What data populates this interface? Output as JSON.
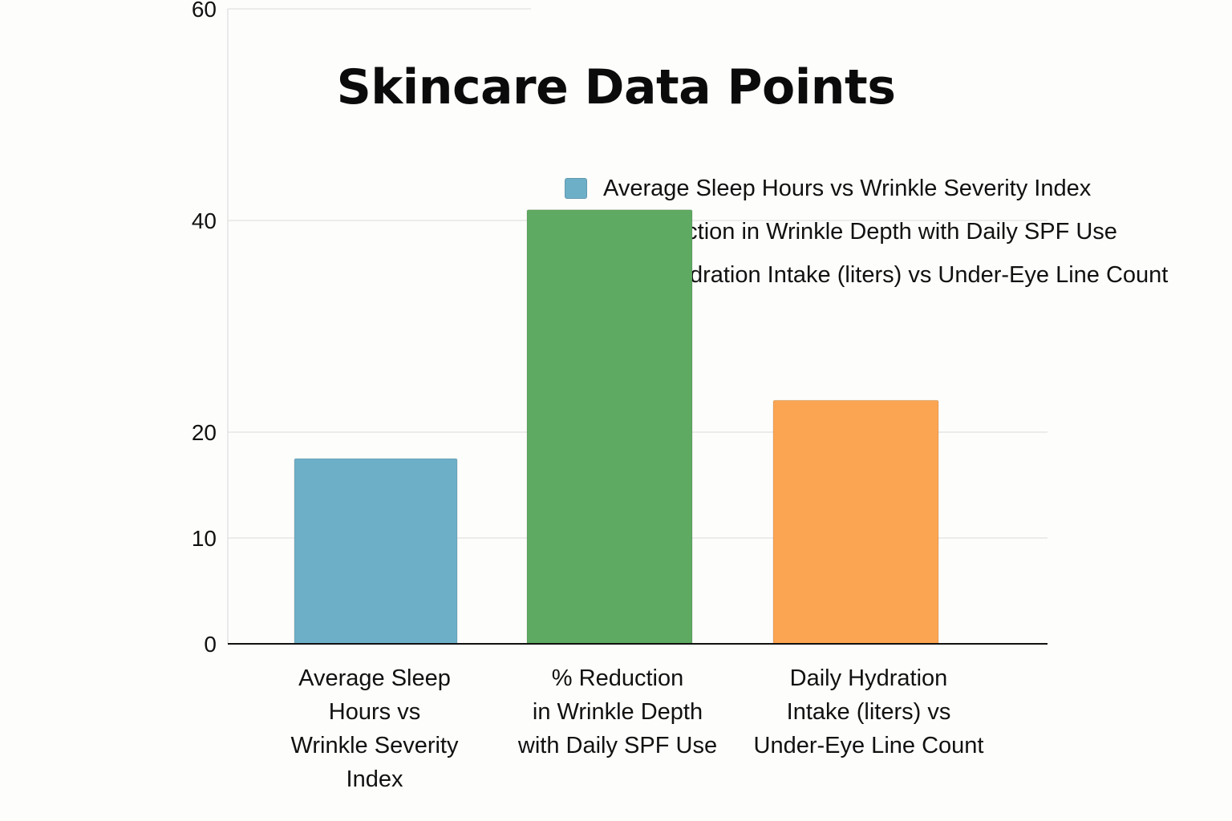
{
  "chart_data": {
    "type": "bar",
    "title": "Skincare Data Points",
    "xlabel": "",
    "ylabel": "",
    "ylim": [
      0,
      60
    ],
    "yticks": [
      {
        "value": 0,
        "label": "0"
      },
      {
        "value": 10,
        "label": "10"
      },
      {
        "value": 20,
        "label": "20"
      },
      {
        "value": 40,
        "label": "40"
      },
      {
        "value": 60,
        "label": "60"
      }
    ],
    "grid": true,
    "legend_position": "top-right",
    "categories": [
      "Average Sleep\nHours vs\nWrinkle Severity\nIndex",
      "% Reduction\nin Wrinkle Depth\nwith Daily SPF Use",
      "Daily Hydration\nIntake (liters) vs\nUnder-Eye Line Count"
    ],
    "series": [
      {
        "name": "Average Sleep Hours vs Wrinkle Severity Index",
        "value": 17.5,
        "color": "#6eafc8"
      },
      {
        "name": "% Reduction in Wrinkle Depth with Daily SPF Use",
        "value": 41,
        "color": "#5faa62"
      },
      {
        "name": "Daily Hydration Intake (liters) vs Under-Eye Line Count",
        "value": 23,
        "color": "#fba552"
      }
    ]
  }
}
